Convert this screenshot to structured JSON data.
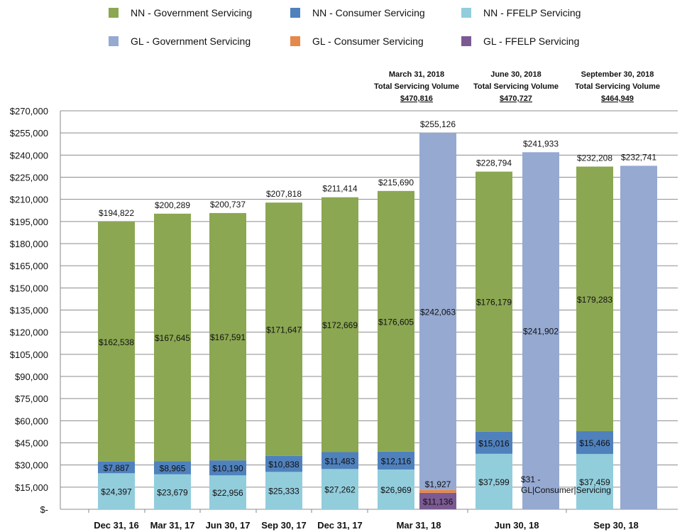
{
  "chart_data": {
    "type": "bar",
    "stacked": true,
    "ylim": [
      0,
      270000
    ],
    "yticks": [
      0,
      15000,
      30000,
      45000,
      60000,
      75000,
      90000,
      105000,
      120000,
      135000,
      150000,
      165000,
      180000,
      195000,
      210000,
      225000,
      240000,
      255000,
      270000
    ],
    "ytick_labels": [
      "$-",
      "$15,000",
      "$30,000",
      "$45,000",
      "$60,000",
      "$75,000",
      "$90,000",
      "$105,000",
      "$120,000",
      "$135,000",
      "$150,000",
      "$165,000",
      "$180,000",
      "$195,000",
      "$210,000",
      "$225,000",
      "$240,000",
      "$255,000",
      "$270,000"
    ],
    "grid": true,
    "legend_position": "top",
    "series": [
      {
        "key": "nn_gov",
        "name": "NN - Government Servicing",
        "color": "#8BA752"
      },
      {
        "key": "nn_con",
        "name": "NN - Consumer Servicing",
        "color": "#4F81BD"
      },
      {
        "key": "nn_ffelp",
        "name": "NN - FFELP Servicing",
        "color": "#92CDDC"
      },
      {
        "key": "gl_gov",
        "name": "GL - Government Servicing",
        "color": "#95A9D1"
      },
      {
        "key": "gl_con",
        "name": "GL - Consumer Servicing",
        "color": "#E4894A"
      },
      {
        "key": "gl_ffelp",
        "name": "GL - FFELP Servicing",
        "color": "#7B5A93"
      }
    ],
    "categories": [
      "Dec 31, 16",
      "Mar 31, 17",
      "Jun 30, 17",
      "Sep 30, 17",
      "Dec 31, 17",
      "Mar 31, 18",
      "Jun 30, 18",
      "Sep 30, 18"
    ],
    "bars": [
      {
        "category": "Dec 31, 16",
        "owner": "NN",
        "total_label": "$194,822",
        "segments": [
          {
            "series": "nn_ffelp",
            "value": 24397,
            "label": "$24,397"
          },
          {
            "series": "nn_con",
            "value": 7887,
            "label": "$7,887"
          },
          {
            "series": "nn_gov",
            "value": 162538,
            "label": "$162,538"
          }
        ]
      },
      {
        "category": "Mar 31, 17",
        "owner": "NN",
        "total_label": "$200,289",
        "segments": [
          {
            "series": "nn_ffelp",
            "value": 23679,
            "label": "$23,679"
          },
          {
            "series": "nn_con",
            "value": 8965,
            "label": "$8,965"
          },
          {
            "series": "nn_gov",
            "value": 167645,
            "label": "$167,645"
          }
        ]
      },
      {
        "category": "Jun 30, 17",
        "owner": "NN",
        "total_label": "$200,737",
        "segments": [
          {
            "series": "nn_ffelp",
            "value": 22956,
            "label": "$22,956"
          },
          {
            "series": "nn_con",
            "value": 10190,
            "label": "$10,190"
          },
          {
            "series": "nn_gov",
            "value": 167591,
            "label": "$167,591"
          }
        ]
      },
      {
        "category": "Sep 30, 17",
        "owner": "NN",
        "total_label": "$207,818",
        "segments": [
          {
            "series": "nn_ffelp",
            "value": 25333,
            "label": "$25,333"
          },
          {
            "series": "nn_con",
            "value": 10838,
            "label": "$10,838"
          },
          {
            "series": "nn_gov",
            "value": 171647,
            "label": "$171,647"
          }
        ]
      },
      {
        "category": "Dec 31, 17",
        "owner": "NN",
        "total_label": "$211,414",
        "segments": [
          {
            "series": "nn_ffelp",
            "value": 27262,
            "label": "$27,262"
          },
          {
            "series": "nn_con",
            "value": 11483,
            "label": "$11,483"
          },
          {
            "series": "nn_gov",
            "value": 172669,
            "label": "$172,669"
          }
        ]
      },
      {
        "category": "Mar 31, 18",
        "owner": "NN",
        "total_label": "$215,690",
        "segments": [
          {
            "series": "nn_ffelp",
            "value": 26969,
            "label": "$26,969"
          },
          {
            "series": "nn_con",
            "value": 12116,
            "label": "$12,116"
          },
          {
            "series": "nn_gov",
            "value": 176605,
            "label": "$176,605"
          }
        ]
      },
      {
        "category": "Mar 31, 18",
        "owner": "GL",
        "total_label": "$255,126",
        "segments": [
          {
            "series": "gl_ffelp",
            "value": 11136,
            "label": "$11,136"
          },
          {
            "series": "gl_con",
            "value": 1927,
            "label": "$1,927"
          },
          {
            "series": "gl_gov",
            "value": 242063,
            "label": "$242,063"
          }
        ]
      },
      {
        "category": "Jun 30, 18",
        "owner": "NN",
        "total_label": "$228,794",
        "segments": [
          {
            "series": "nn_ffelp",
            "value": 37599,
            "label": "$37,599"
          },
          {
            "series": "nn_con",
            "value": 15016,
            "label": "$15,016"
          },
          {
            "series": "nn_gov",
            "value": 176179,
            "label": "$176,179"
          }
        ]
      },
      {
        "category": "Jun 30, 18",
        "owner": "GL",
        "total_label": "$241,933",
        "segments": [
          {
            "series": "gl_con",
            "value": 31,
            "label": "$31 - GL|Consumer|Servicing"
          },
          {
            "series": "gl_gov",
            "value": 241902,
            "label": "$241,902"
          }
        ]
      },
      {
        "category": "Sep 30, 18",
        "owner": "NN",
        "total_label": "$232,208",
        "segments": [
          {
            "series": "nn_ffelp",
            "value": 37459,
            "label": "$37,459"
          },
          {
            "series": "nn_con",
            "value": 15466,
            "label": "$15,466"
          },
          {
            "series": "nn_gov",
            "value": 179283,
            "label": "$179,283"
          }
        ]
      },
      {
        "category": "Sep 30, 18",
        "owner": "GL",
        "total_label": "$232,741",
        "segments": [
          {
            "series": "gl_gov",
            "value": 232741,
            "label": ""
          }
        ]
      }
    ],
    "annotations": [
      {
        "date": "March 31, 2018",
        "caption": "Total Servicing Volume",
        "total": "$470,816"
      },
      {
        "date": "June 30, 2018",
        "caption": "Total Servicing Volume",
        "total": "$470,727"
      },
      {
        "date": "September 30, 2018",
        "caption": "Total Servicing Volume",
        "total": "$464,949"
      }
    ]
  }
}
